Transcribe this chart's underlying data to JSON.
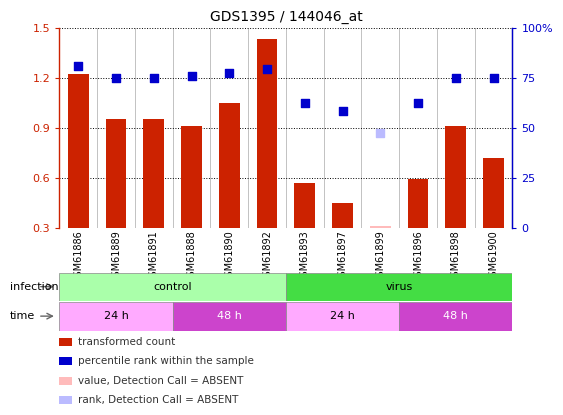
{
  "title": "GDS1395 / 144046_at",
  "samples": [
    "GSM61886",
    "GSM61889",
    "GSM61891",
    "GSM61888",
    "GSM61890",
    "GSM61892",
    "GSM61893",
    "GSM61897",
    "GSM61899",
    "GSM61896",
    "GSM61898",
    "GSM61900"
  ],
  "red_values": [
    1.22,
    0.95,
    0.95,
    0.91,
    1.05,
    1.43,
    0.57,
    0.45,
    0.31,
    0.59,
    0.91,
    0.72
  ],
  "blue_values": [
    1.27,
    1.2,
    1.2,
    1.21,
    1.23,
    1.25,
    1.05,
    1.0,
    0.87,
    1.05,
    1.2,
    1.2
  ],
  "red_absent": [
    false,
    false,
    false,
    false,
    false,
    false,
    false,
    false,
    true,
    false,
    false,
    false
  ],
  "blue_absent": [
    false,
    false,
    false,
    false,
    false,
    false,
    false,
    false,
    true,
    false,
    false,
    false
  ],
  "infection_groups": [
    {
      "label": "control",
      "start": 0,
      "end": 6,
      "color": "#aaffaa"
    },
    {
      "label": "virus",
      "start": 6,
      "end": 12,
      "color": "#44dd44"
    }
  ],
  "time_groups": [
    {
      "label": "24 h",
      "start": 0,
      "end": 3,
      "color": "#ffaaff"
    },
    {
      "label": "48 h",
      "start": 3,
      "end": 6,
      "color": "#cc44cc"
    },
    {
      "label": "24 h",
      "start": 6,
      "end": 9,
      "color": "#ffaaff"
    },
    {
      "label": "48 h",
      "start": 9,
      "end": 12,
      "color": "#cc44cc"
    }
  ],
  "ylim_left": [
    0.3,
    1.5
  ],
  "ylim_right": [
    0,
    100
  ],
  "yticks_left": [
    0.3,
    0.6,
    0.9,
    1.2,
    1.5
  ],
  "yticks_right": [
    0,
    25,
    50,
    75,
    100
  ],
  "bar_color": "#cc2200",
  "dot_color": "#0000cc",
  "bar_absent_color": "#ffbbbb",
  "dot_absent_color": "#bbbbff",
  "bar_width": 0.55,
  "dot_size": 28,
  "legend_items": [
    {
      "color": "#cc2200",
      "label": "transformed count"
    },
    {
      "color": "#0000cc",
      "label": "percentile rank within the sample"
    },
    {
      "color": "#ffbbbb",
      "label": "value, Detection Call = ABSENT"
    },
    {
      "color": "#bbbbff",
      "label": "rank, Detection Call = ABSENT"
    }
  ]
}
